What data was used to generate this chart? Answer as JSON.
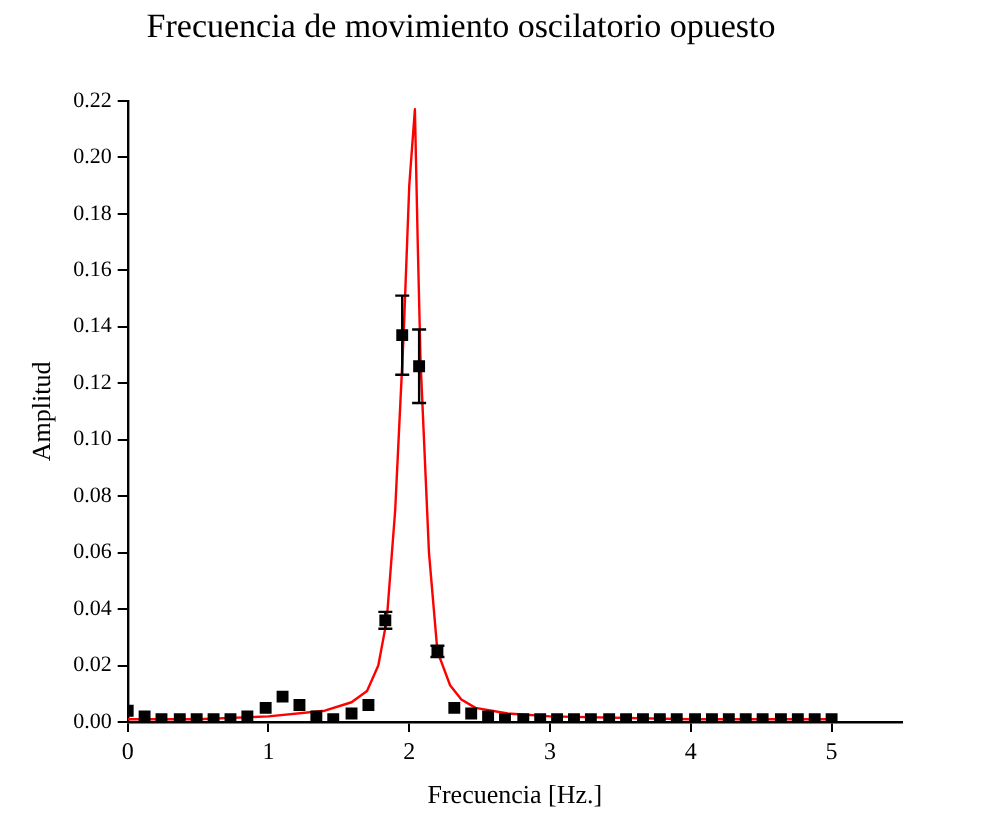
{
  "chart_data": {
    "type": "scatter",
    "title": "Frecuencia de movimiento oscilatorio opuesto",
    "xlabel": "Frecuencia [Hz.]",
    "ylabel": "Amplitud",
    "xlim": [
      0,
      5.5
    ],
    "xticks": [
      0,
      1,
      2,
      3,
      4,
      5
    ],
    "ylim": [
      0,
      0.22
    ],
    "yticks": [
      {
        "value": 0,
        "label": "0.00"
      },
      {
        "value": 0.02,
        "label": "0.02"
      },
      {
        "value": 0.04,
        "label": "0.04"
      },
      {
        "value": 0.06,
        "label": "0.06"
      },
      {
        "value": 0.08,
        "label": "0.08"
      },
      {
        "value": 0.1,
        "label": "0.10"
      },
      {
        "value": 0.12,
        "label": "0.12"
      },
      {
        "value": 0.14,
        "label": "0.14"
      },
      {
        "value": 0.16,
        "label": "0.16"
      },
      {
        "value": 0.18,
        "label": "0.18"
      },
      {
        "value": 0.2,
        "label": "0.20"
      },
      {
        "value": 0.22,
        "label": "0.22"
      }
    ],
    "grid": false,
    "legend": false,
    "series": [
      {
        "color": "#000000",
        "marker": "square",
        "x": [
          0,
          0.12,
          0.24,
          0.37,
          0.49,
          0.61,
          0.73,
          0.85,
          0.98,
          1.1,
          1.22,
          1.34,
          1.46,
          1.59,
          1.71,
          1.83,
          1.95,
          2.07,
          2.2,
          2.32,
          2.44,
          2.56,
          2.68,
          2.81,
          2.93,
          3.05,
          3.17,
          3.29,
          3.42,
          3.54,
          3.66,
          3.78,
          3.9,
          4.03,
          4.15,
          4.27,
          4.39,
          4.51,
          4.64,
          4.76,
          4.88,
          5.0
        ],
        "values": [
          0.004,
          0.002,
          0.001,
          0.001,
          0.001,
          0.001,
          0.001,
          0.002,
          0.005,
          0.009,
          0.006,
          0.002,
          0.001,
          0.003,
          0.006,
          0.036,
          0.137,
          0.126,
          0.025,
          0.005,
          0.003,
          0.002,
          0.001,
          0.001,
          0.001,
          0.001,
          0.001,
          0.001,
          0.001,
          0.001,
          0.001,
          0.001,
          0.001,
          0.001,
          0.001,
          0.001,
          0.001,
          0.001,
          0.001,
          0.001,
          0.001,
          0.001
        ],
        "errors": [
          null,
          null,
          null,
          null,
          null,
          null,
          null,
          null,
          null,
          null,
          null,
          null,
          null,
          null,
          null,
          0.003,
          0.014,
          0.013,
          0.002,
          null,
          null,
          null,
          null,
          null,
          null,
          null,
          null,
          null,
          null,
          null,
          null,
          null,
          null,
          null,
          null,
          null,
          null,
          null,
          null,
          null,
          null,
          null
        ]
      },
      {
        "type": "line",
        "color": "#ff0000",
        "marker": "none",
        "line_style": "solid",
        "x": [
          0,
          0.5,
          1.0,
          1.4,
          1.59,
          1.7,
          1.78,
          1.84,
          1.9,
          1.96,
          2.0,
          2.04,
          2.06,
          2.08,
          2.14,
          2.2,
          2.29,
          2.37,
          2.47,
          2.7,
          3.0,
          4.0,
          5.0
        ],
        "values": [
          0.001,
          0.001,
          0.002,
          0.004,
          0.007,
          0.011,
          0.02,
          0.036,
          0.075,
          0.137,
          0.19,
          0.217,
          0.17,
          0.128,
          0.06,
          0.025,
          0.013,
          0.008,
          0.005,
          0.003,
          0.002,
          0.001,
          0.001
        ]
      }
    ]
  }
}
